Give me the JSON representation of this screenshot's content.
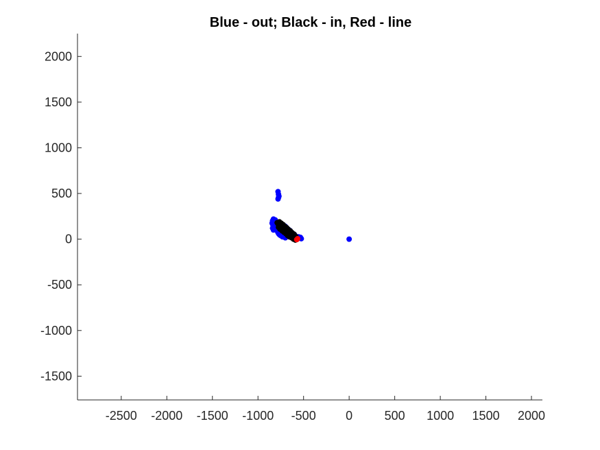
{
  "chart_data": {
    "type": "scatter",
    "title": "Blue - out; Black - in, Red - line",
    "xlabel": "",
    "ylabel": "",
    "xlim": [
      -2980,
      2120
    ],
    "ylim": [
      -1760,
      2250
    ],
    "grid": false,
    "legend": "none",
    "x_ticks": [
      -2500,
      -2000,
      -1500,
      -1000,
      -500,
      0,
      500,
      1000,
      1500,
      2000
    ],
    "y_ticks": [
      -1500,
      -1000,
      -500,
      0,
      500,
      1000,
      1500,
      2000
    ],
    "x_tick_labels": [
      "-2500",
      "-2000",
      "-1500",
      "-1000",
      "-500",
      "0",
      "500",
      "1000",
      "1500",
      "2000"
    ],
    "y_tick_labels": [
      "-1500",
      "-1000",
      "-500",
      "0",
      "500",
      "1000",
      "1500",
      "2000"
    ],
    "colors": {
      "out": "#0000ff",
      "in": "#000000",
      "line": "#ff0000",
      "axis": "#262626"
    },
    "series": [
      {
        "key": "out",
        "color": "#0000ff",
        "points": [
          [
            -780,
            520
          ],
          [
            -775,
            490
          ],
          [
            -770,
            470
          ],
          [
            -780,
            440
          ],
          [
            -775,
            455
          ],
          [
            -830,
            220
          ],
          [
            -840,
            200
          ],
          [
            -845,
            175
          ],
          [
            -835,
            150
          ],
          [
            -840,
            120
          ],
          [
            -830,
            100
          ],
          [
            -820,
            185
          ],
          [
            -810,
            210
          ],
          [
            -805,
            160
          ],
          [
            -800,
            130
          ],
          [
            -790,
            90
          ],
          [
            -780,
            70
          ],
          [
            -770,
            55
          ],
          [
            -760,
            45
          ],
          [
            -745,
            35
          ],
          [
            -730,
            25
          ],
          [
            -715,
            150
          ],
          [
            -700,
            140
          ],
          [
            -690,
            125
          ],
          [
            -670,
            110
          ],
          [
            -650,
            95
          ],
          [
            -640,
            80
          ],
          [
            -620,
            60
          ],
          [
            -600,
            50
          ],
          [
            -590,
            35
          ],
          [
            -580,
            20
          ],
          [
            -565,
            15
          ],
          [
            -555,
            25
          ],
          [
            -545,
            10
          ],
          [
            -535,
            20
          ],
          [
            -525,
            5
          ],
          [
            -640,
            20
          ],
          [
            -660,
            30
          ],
          [
            -700,
            15
          ],
          [
            -620,
            10
          ],
          [
            0,
            0
          ]
        ]
      },
      {
        "key": "in",
        "color": "#000000",
        "points": [
          [
            -790,
            180
          ],
          [
            -780,
            165
          ],
          [
            -770,
            175
          ],
          [
            -760,
            150
          ],
          [
            -750,
            160
          ],
          [
            -745,
            135
          ],
          [
            -735,
            145
          ],
          [
            -725,
            120
          ],
          [
            -715,
            130
          ],
          [
            -705,
            110
          ],
          [
            -700,
            95
          ],
          [
            -690,
            100
          ],
          [
            -680,
            85
          ],
          [
            -670,
            75
          ],
          [
            -660,
            80
          ],
          [
            -650,
            60
          ],
          [
            -640,
            65
          ],
          [
            -630,
            45
          ],
          [
            -620,
            40
          ],
          [
            -610,
            25
          ],
          [
            -600,
            15
          ],
          [
            -595,
            5
          ],
          [
            -760,
            110
          ],
          [
            -740,
            100
          ],
          [
            -720,
            85
          ],
          [
            -700,
            70
          ],
          [
            -680,
            55
          ],
          [
            -660,
            45
          ],
          [
            -640,
            35
          ],
          [
            -775,
            130
          ],
          [
            -755,
            120
          ],
          [
            -735,
            90
          ],
          [
            -715,
            75
          ],
          [
            -695,
            60
          ],
          [
            -675,
            40
          ],
          [
            -655,
            25
          ],
          [
            -765,
            190
          ],
          [
            -745,
            175
          ],
          [
            -725,
            160
          ],
          [
            -705,
            140
          ],
          [
            -685,
            125
          ],
          [
            -665,
            105
          ],
          [
            -645,
            90
          ],
          [
            -625,
            70
          ],
          [
            -605,
            55
          ],
          [
            -585,
            30
          ],
          [
            -575,
            10
          ],
          [
            -590,
            -10
          ],
          [
            -610,
            0
          ],
          [
            -630,
            15
          ]
        ]
      },
      {
        "key": "line",
        "color": "#ff0000",
        "points": [
          [
            -575,
            -5
          ],
          [
            -565,
            5
          ]
        ]
      }
    ]
  }
}
